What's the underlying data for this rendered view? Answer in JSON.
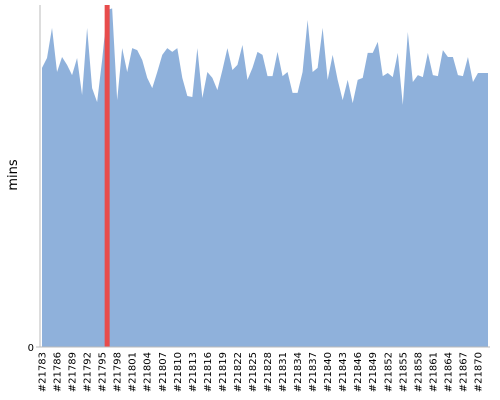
{
  "chart_data": {
    "type": "area",
    "y_label": "mins",
    "categories": [
      "#21783",
      null,
      null,
      "#21786",
      null,
      null,
      "#21789",
      null,
      null,
      "#21792",
      null,
      null,
      "#21795",
      null,
      null,
      "#21798",
      null,
      null,
      "#21801",
      null,
      null,
      "#21804",
      null,
      null,
      "#21807",
      null,
      null,
      "#21810",
      null,
      null,
      "#21813",
      null,
      null,
      "#21816",
      null,
      null,
      "#21819",
      null,
      null,
      "#21822",
      null,
      null,
      "#21825",
      null,
      null,
      "#21828",
      null,
      null,
      "#21831",
      null,
      null,
      "#21834",
      null,
      null,
      "#21837",
      null,
      null,
      "#21840",
      null,
      null,
      "#21843",
      null,
      null,
      "#21846",
      null,
      null,
      "#21849",
      null,
      null,
      "#21852",
      null,
      null,
      "#21855",
      null,
      null,
      "#21858",
      null,
      null,
      "#21861",
      null,
      null,
      "#21864",
      null,
      null,
      "#21867",
      null,
      null,
      "#21870",
      null,
      null
    ],
    "series": [
      {
        "kind": "area",
        "color": "#8fb1db",
        "values": [
          81.6,
          84.5,
          93.3,
          80.4,
          84.8,
          82.5,
          79.5,
          84.5,
          73.7,
          93.3,
          75.7,
          71.6,
          83.9,
          98.5,
          99,
          72.2,
          87.4,
          80.4,
          87.4,
          86.8,
          83.9,
          78.7,
          75.7,
          80.4,
          85.4,
          87.4,
          86.3,
          87.4,
          78.7,
          73.4,
          73.1,
          87.4,
          72.8,
          80.4,
          78.7,
          75.1,
          81.0,
          87.4,
          81.0,
          82.5,
          88.3,
          78.1,
          81.6,
          86.3,
          85.4,
          79.2,
          79.2,
          86.3,
          79.2,
          80.4,
          74.3,
          74.3,
          80.4,
          95.6,
          80.4,
          81.6,
          93.3,
          78.1,
          85.4,
          78.1,
          72.2,
          78.1,
          71.3,
          78.1,
          78.7,
          86.0,
          86.0,
          89.2,
          79.2,
          80.1,
          78.9,
          86.0,
          70.8,
          92.1,
          77.5,
          79.5,
          78.9,
          86.0,
          79.5,
          79.2,
          86.8,
          84.8,
          84.8,
          79.5,
          79.2,
          84.8,
          77.5,
          80.1,
          80.1,
          80.1
        ]
      },
      {
        "kind": "bar",
        "color": "#e84c4c",
        "values": [
          null,
          null,
          null,
          null,
          null,
          null,
          null,
          null,
          null,
          null,
          null,
          null,
          null,
          100,
          null,
          null,
          null,
          null,
          null,
          null,
          null,
          null,
          null,
          null,
          null,
          null,
          null,
          null,
          null,
          null,
          null,
          null,
          null,
          null,
          null,
          null,
          null,
          null,
          null,
          null,
          null,
          null,
          null,
          null,
          null,
          null,
          null,
          null,
          null,
          null,
          null,
          null,
          null,
          null,
          null,
          null,
          null,
          null,
          null,
          null,
          null,
          null,
          null,
          null,
          null,
          null,
          null,
          null,
          null,
          null,
          null,
          null,
          null,
          null,
          null,
          null,
          null,
          null,
          null,
          null,
          null,
          null,
          null,
          null,
          null,
          null,
          null,
          null,
          null,
          null
        ]
      }
    ],
    "ylim": [
      0,
      100
    ],
    "yticks": [
      0
    ]
  }
}
